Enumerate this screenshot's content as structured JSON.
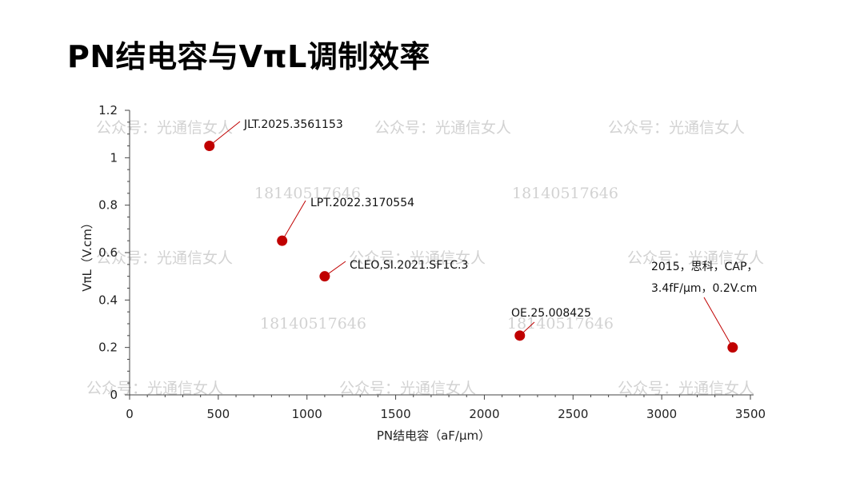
{
  "title": "PN结电容与VπL调制效率",
  "chart_data": {
    "type": "scatter",
    "xlabel": "PN结电容（aF/μm）",
    "ylabel": "VπL（V.cm）",
    "xlim": [
      0,
      3500
    ],
    "ylim": [
      0,
      1.2
    ],
    "x_ticks": [
      "0",
      "500",
      "1000",
      "1500",
      "2000",
      "2500",
      "3000",
      "3500"
    ],
    "y_ticks": [
      "0",
      "0.2",
      "0.4",
      "0.6",
      "0.8",
      "1",
      "1.2"
    ],
    "grid": false,
    "marker_color": "#c00000",
    "points": [
      {
        "x": 450,
        "y": 1.05,
        "label": [
          "JLT.2025.3561153"
        ]
      },
      {
        "x": 860,
        "y": 0.65,
        "label": [
          "LPT.2022.3170554"
        ]
      },
      {
        "x": 1100,
        "y": 0.5,
        "label": [
          "CLEO,SI.2021.SF1C.3"
        ]
      },
      {
        "x": 2200,
        "y": 0.25,
        "label": [
          "OE.25.008425"
        ]
      },
      {
        "x": 3400,
        "y": 0.2,
        "label": [
          "2015，思科，CAP，",
          "3.4fF/μm，0.2V.cm"
        ]
      }
    ]
  },
  "watermarks": [
    "公众号：光通信女人",
    "18140517646"
  ]
}
